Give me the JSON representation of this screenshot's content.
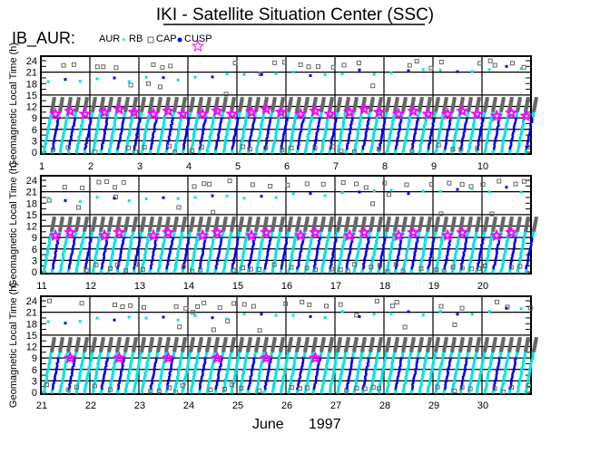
{
  "title": "IKI - Satellite Situation Center (SSC)",
  "instrument": "IB_AUR:",
  "legend": [
    {
      "label": "AUR",
      "marker": "asterisk",
      "color": "#00e5e5"
    },
    {
      "label": "RB",
      "marker": "square",
      "color": "#666666"
    },
    {
      "label": "CAP",
      "marker": "dot",
      "color": "#0000ee"
    },
    {
      "label": "CUSP",
      "marker": "star",
      "color": "#ff00ff"
    }
  ],
  "month_label": "June",
  "year_label": "1997",
  "chart_data": {
    "type": "scatter",
    "ylabel": "Geomagnetic Local Time (h)",
    "ylim": [
      0,
      24
    ],
    "yticks": [
      "0",
      "3",
      "6",
      "9",
      "12",
      "15",
      "18",
      "21",
      "24"
    ],
    "grid": true,
    "panels": [
      {
        "days": [
          "1",
          "2",
          "3",
          "4",
          "5",
          "6",
          "7",
          "8",
          "9",
          "10"
        ],
        "cusp_mlt": [
          10,
          10.5,
          10,
          10,
          10.5,
          10,
          10.5,
          10,
          10,
          9.5
        ]
      },
      {
        "days": [
          "11",
          "12",
          "13",
          "14",
          "15",
          "16",
          "17",
          "18",
          "19",
          "20"
        ],
        "cusp_mlt": [
          9.5,
          9.5,
          9.5,
          9.5,
          9.5,
          9.5,
          9.5,
          9.5,
          9.5,
          9.5
        ]
      },
      {
        "days": [
          "21",
          "22",
          "23",
          "24",
          "25",
          "26",
          "27",
          "28",
          "29",
          "30"
        ],
        "cusp_mlt": [
          9,
          9,
          9,
          9,
          9,
          9,
          null,
          null,
          null,
          null
        ]
      }
    ],
    "day_end_label": [
      "11",
      "21",
      ""
    ],
    "passes_per_day": 6
  }
}
